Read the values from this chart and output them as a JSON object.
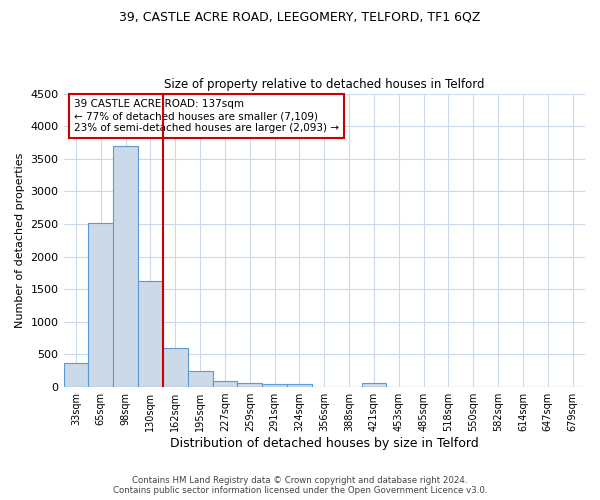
{
  "title1": "39, CASTLE ACRE ROAD, LEEGOMERY, TELFORD, TF1 6QZ",
  "title2": "Size of property relative to detached houses in Telford",
  "xlabel": "Distribution of detached houses by size in Telford",
  "ylabel": "Number of detached properties",
  "categories": [
    "33sqm",
    "65sqm",
    "98sqm",
    "130sqm",
    "162sqm",
    "195sqm",
    "227sqm",
    "259sqm",
    "291sqm",
    "324sqm",
    "356sqm",
    "388sqm",
    "421sqm",
    "453sqm",
    "485sqm",
    "518sqm",
    "550sqm",
    "582sqm",
    "614sqm",
    "647sqm",
    "679sqm"
  ],
  "values": [
    370,
    2520,
    3700,
    1630,
    600,
    240,
    100,
    55,
    50,
    50,
    0,
    0,
    55,
    0,
    0,
    0,
    0,
    0,
    0,
    0,
    0
  ],
  "bar_color": "#ccd9e8",
  "bar_edge_color": "#5b9bd5",
  "vline_color": "#cc0000",
  "annotation_title": "39 CASTLE ACRE ROAD: 137sqm",
  "annotation_line1": "← 77% of detached houses are smaller (7,109)",
  "annotation_line2": "23% of semi-detached houses are larger (2,093) →",
  "annotation_box_color": "#ffffff",
  "annotation_box_edge": "#cc0000",
  "ylim": [
    0,
    4500
  ],
  "yticks": [
    0,
    500,
    1000,
    1500,
    2000,
    2500,
    3000,
    3500,
    4000,
    4500
  ],
  "footer1": "Contains HM Land Registry data © Crown copyright and database right 2024.",
  "footer2": "Contains public sector information licensed under the Open Government Licence v3.0.",
  "background_color": "#ffffff",
  "grid_color": "#ccd9e8"
}
